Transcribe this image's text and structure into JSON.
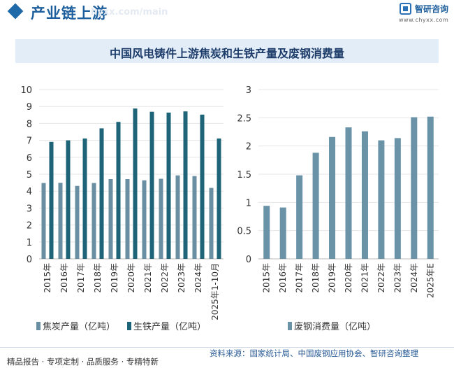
{
  "header": {
    "title": "产业链上游",
    "watermark": "hyxx.com/main",
    "logo_name": "智研咨询",
    "logo_url": "www.chyxx.com"
  },
  "title": "中国风电铸件上游焦炭和生铁产量及废钢消费量",
  "colors": {
    "coke": "#6a8fa3",
    "iron": "#1d6478",
    "scrap": "#6a93a8",
    "axis": "#bbbbbb",
    "grid": "#e6e6e6",
    "brand": "#1d5f9c"
  },
  "chart_data": [
    {
      "type": "bar",
      "categories": [
        "2015年",
        "2016年",
        "2017年",
        "2018年",
        "2019年",
        "2020年",
        "2021年",
        "2022年",
        "2023年",
        "2024年",
        "2025年1-10月"
      ],
      "series": [
        {
          "name": "焦炭产量（亿吨）",
          "values": [
            4.48,
            4.49,
            4.31,
            4.48,
            4.71,
            4.71,
            4.64,
            4.73,
            4.93,
            4.89,
            4.19
          ]
        },
        {
          "name": "生铁产量（亿吨）",
          "values": [
            6.91,
            7.0,
            7.11,
            7.71,
            8.09,
            8.88,
            8.69,
            8.64,
            8.71,
            8.52,
            7.11
          ]
        }
      ],
      "ylim": [
        0,
        10
      ],
      "yticks": [
        0,
        1,
        2,
        3,
        4,
        5,
        6,
        7,
        8,
        9,
        10
      ],
      "grid": true,
      "legend": "bottom"
    },
    {
      "type": "bar",
      "categories": [
        "2015年",
        "2016年",
        "2017年",
        "2018年",
        "2019年",
        "2020年",
        "2021年",
        "2022年",
        "2023年",
        "2024年",
        "2025年E"
      ],
      "series": [
        {
          "name": "废钢消费量（亿吨）",
          "values": [
            0.94,
            0.91,
            1.48,
            1.88,
            2.16,
            2.33,
            2.26,
            2.1,
            2.14,
            2.51,
            2.52
          ]
        }
      ],
      "ylim": [
        0,
        3
      ],
      "yticks": [
        0,
        0.5,
        1,
        1.5,
        2,
        2.5,
        3
      ],
      "grid": true,
      "legend": "bottom"
    }
  ],
  "footer": {
    "left": "精品报告 · 专项定制 · 品质服务 · 专精特新",
    "right": "资料来源：国家统计局、中国废钢应用协会、智研咨询整理"
  }
}
